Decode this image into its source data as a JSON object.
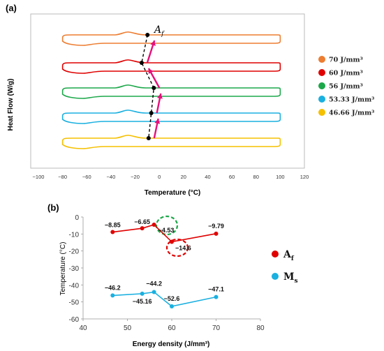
{
  "chart_data": [
    {
      "type": "line",
      "panel_label": "(a)",
      "xlabel": "Temperature (°C)",
      "ylabel": "Heat Flow (W/g)",
      "xlim": [
        -100,
        120
      ],
      "x_ticks": [
        "−100",
        "−80",
        "−60",
        "−40",
        "−20",
        "0",
        "20",
        "40",
        "60",
        "80",
        "100",
        "120"
      ],
      "y_ticks_shown": false,
      "annotation": "A",
      "annotation_subscript": "f",
      "legend_position": "right",
      "series": [
        {
          "name": "70 J/mm³",
          "color": "#ed7d31",
          "x_range": [
            -80,
            100
          ],
          "peak_x": -25,
          "a_f": -9.79
        },
        {
          "name": "60 J/mm³",
          "color": "#e00000",
          "x_range": [
            -80,
            100
          ],
          "peak_x": -25,
          "a_f": -14.6
        },
        {
          "name": "56 J/mm³",
          "color": "#1ca84a",
          "x_range": [
            -80,
            100
          ],
          "peak_x": -25,
          "a_f": -4.53
        },
        {
          "name": "53.33 J/mm³",
          "color": "#1ab0e0",
          "x_range": [
            -80,
            100
          ],
          "peak_x": -25,
          "a_f": -6.65
        },
        {
          "name": "46.66 J/mm³",
          "color": "#f5c000",
          "x_range": [
            -80,
            100
          ],
          "peak_x": -25,
          "a_f": -8.85
        }
      ]
    },
    {
      "type": "line",
      "panel_label": "(b)",
      "xlabel": "Energy density (J/mm³)",
      "ylabel": "Temperature (°C)",
      "xlim": [
        40,
        80
      ],
      "ylim": [
        -60,
        0
      ],
      "x_ticks": [
        40,
        50,
        60,
        70,
        80
      ],
      "y_ticks": [
        0,
        -10,
        -20,
        -30,
        -40,
        -50,
        -60
      ],
      "legend_position": "right",
      "series": [
        {
          "name": "A",
          "subscript": "f",
          "color": "#e00000",
          "x": [
            46.66,
            53.33,
            56,
            60,
            70
          ],
          "y": [
            -8.85,
            -6.65,
            -4.53,
            -14.6,
            -9.79
          ],
          "labels": [
            "−8.85",
            "−6.65",
            "−4.53",
            "−14.6",
            "−9.79"
          ]
        },
        {
          "name": "M",
          "subscript": "s",
          "color": "#1ab0e0",
          "x": [
            46.66,
            53.33,
            56,
            60,
            70
          ],
          "y": [
            -46.2,
            -45.16,
            -44.2,
            -52.6,
            -47.1
          ],
          "labels": [
            "−46.2",
            "−45.16",
            "−44.2",
            "−52.6",
            "−47.1"
          ]
        }
      ]
    }
  ]
}
